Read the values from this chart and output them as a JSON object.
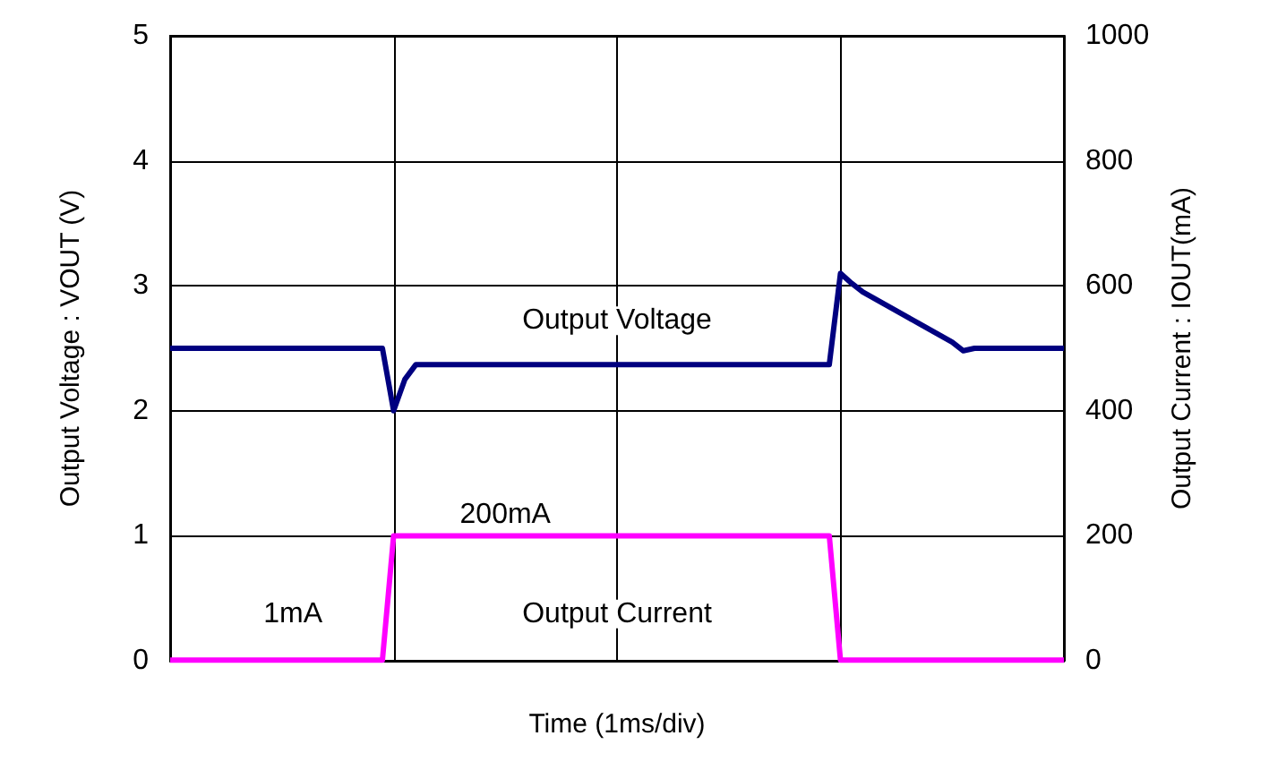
{
  "chart_data": {
    "type": "line",
    "xlabel": "Time (1ms/div)",
    "ylabel": "Output Voltage : VOUT (V)",
    "y2label": "Output Current : IOUT(mA)",
    "categories": [
      null,
      null,
      null,
      null,
      null,
      null,
      null,
      null,
      null,
      null,
      null,
      null,
      null,
      null,
      null,
      null,
      null,
      null,
      null,
      null,
      null,
      null,
      null,
      null,
      null,
      null,
      null,
      null,
      null,
      null,
      null,
      null,
      null,
      null,
      null,
      null,
      null,
      null,
      null,
      null,
      null,
      null,
      null,
      null,
      null,
      null,
      null,
      null,
      null,
      null,
      null,
      null,
      null,
      null,
      null,
      null,
      null,
      null,
      null,
      null,
      null,
      null,
      null,
      null,
      null,
      null,
      null,
      null,
      null,
      null,
      null,
      null,
      null,
      null,
      null,
      null,
      null,
      null,
      null,
      null,
      null
    ],
    "ylim": [
      0,
      5
    ],
    "yticks": [
      0,
      1,
      2,
      3,
      4,
      5
    ],
    "y2lim": [
      0,
      1000
    ],
    "y2ticks": [
      0,
      200,
      400,
      600,
      800,
      1000
    ],
    "grid": true,
    "legend": false,
    "line_style": "solid",
    "series": [
      {
        "name": "Output Voltage",
        "color": "#000080",
        "values": [
          2.5,
          2.5,
          2.5,
          2.5,
          2.5,
          2.5,
          2.5,
          2.5,
          2.5,
          2.5,
          2.5,
          2.5,
          2.5,
          2.5,
          2.5,
          2.5,
          2.5,
          2.5,
          2.5,
          2.5,
          2.0,
          2.25,
          2.37,
          2.37,
          2.37,
          2.37,
          2.37,
          2.37,
          2.37,
          2.37,
          2.37,
          2.37,
          2.37,
          2.37,
          2.37,
          2.37,
          2.37,
          2.37,
          2.37,
          2.37,
          2.37,
          2.37,
          2.37,
          2.37,
          2.37,
          2.37,
          2.37,
          2.37,
          2.37,
          2.37,
          2.37,
          2.37,
          2.37,
          2.37,
          2.37,
          2.37,
          2.37,
          2.37,
          2.37,
          2.37,
          3.1,
          3.02,
          2.95,
          2.9,
          2.85,
          2.8,
          2.75,
          2.7,
          2.65,
          2.6,
          2.55,
          2.48,
          2.5,
          2.5,
          2.5,
          2.5,
          2.5,
          2.5,
          2.5,
          2.5,
          2.5
        ]
      },
      {
        "name": "Output Current",
        "color": "#ff00ff",
        "axis": "y2",
        "values": [
          1,
          1,
          1,
          1,
          1,
          1,
          1,
          1,
          1,
          1,
          1,
          1,
          1,
          1,
          1,
          1,
          1,
          1,
          1,
          1,
          200,
          200,
          200,
          200,
          200,
          200,
          200,
          200,
          200,
          200,
          200,
          200,
          200,
          200,
          200,
          200,
          200,
          200,
          200,
          200,
          200,
          200,
          200,
          200,
          200,
          200,
          200,
          200,
          200,
          200,
          200,
          200,
          200,
          200,
          200,
          200,
          200,
          200,
          200,
          200,
          1,
          1,
          1,
          1,
          1,
          1,
          1,
          1,
          1,
          1,
          1,
          1,
          1,
          1,
          1,
          1,
          1,
          1,
          1,
          1,
          1
        ]
      }
    ],
    "annotations": [
      "200mA",
      "1mA"
    ]
  }
}
